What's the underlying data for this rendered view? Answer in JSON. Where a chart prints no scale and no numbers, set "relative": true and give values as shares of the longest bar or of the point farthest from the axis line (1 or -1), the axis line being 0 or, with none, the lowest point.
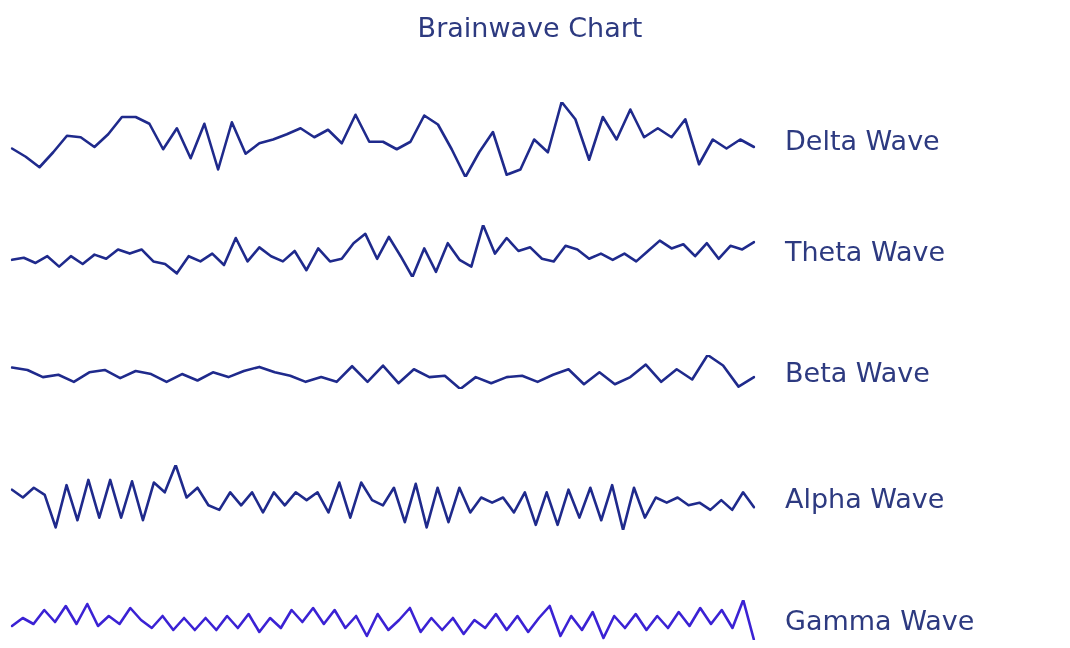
{
  "chart_data": [
    {
      "type": "line",
      "title": "Brainwave Chart",
      "relative": true,
      "marker": "none",
      "categories": [
        null,
        null,
        null,
        null,
        null,
        null,
        null,
        null,
        null,
        null,
        null,
        null,
        null,
        null,
        null,
        null,
        null,
        null,
        null,
        null,
        null,
        null,
        null,
        null,
        null,
        null,
        null,
        null,
        null,
        null,
        null,
        null,
        null,
        null,
        null,
        null,
        null,
        null,
        null,
        null,
        null,
        null,
        null,
        null,
        null,
        null,
        null,
        null,
        null,
        null,
        null,
        null,
        null,
        null,
        null
      ],
      "series": [
        {
          "name": "Delta Wave",
          "color": "#1f2a8c",
          "values": [
            0.38,
            0.27,
            0.13,
            0.33,
            0.55,
            0.53,
            0.4,
            0.57,
            0.8,
            0.8,
            0.71,
            0.37,
            0.65,
            0.25,
            0.71,
            0.1,
            0.73,
            0.31,
            0.45,
            0.5,
            0.57,
            0.65,
            0.53,
            0.63,
            0.45,
            0.83,
            0.47,
            0.47,
            0.37,
            0.47,
            0.82,
            0.7,
            0.37,
            0,
            0.33,
            0.6,
            0.03,
            0.1,
            0.5,
            0.33,
            1,
            0.77,
            0.23,
            0.8,
            0.5,
            0.9,
            0.53,
            0.65,
            0.53,
            0.77,
            0.17,
            0.5,
            0.38,
            0.5,
            0.4
          ]
        }
      ]
    },
    {
      "type": "line",
      "relative": true,
      "marker": "none",
      "categories": [
        null,
        null,
        null,
        null,
        null,
        null,
        null,
        null,
        null,
        null,
        null,
        null,
        null,
        null,
        null,
        null,
        null,
        null,
        null,
        null,
        null,
        null,
        null,
        null,
        null,
        null,
        null,
        null,
        null,
        null,
        null,
        null,
        null,
        null,
        null,
        null,
        null,
        null,
        null,
        null,
        null,
        null,
        null,
        null,
        null,
        null,
        null,
        null,
        null,
        null,
        null,
        null,
        null,
        null,
        null,
        null,
        null,
        null,
        null,
        null,
        null,
        null,
        null,
        null
      ],
      "series": [
        {
          "name": "Theta Wave",
          "color": "#1f2a8c",
          "values": [
            0.33,
            0.37,
            0.27,
            0.4,
            0.2,
            0.4,
            0.25,
            0.43,
            0.35,
            0.53,
            0.45,
            0.53,
            0.3,
            0.25,
            0.07,
            0.4,
            0.3,
            0.45,
            0.23,
            0.75,
            0.3,
            0.57,
            0.4,
            0.3,
            0.5,
            0.13,
            0.55,
            0.3,
            0.35,
            0.65,
            0.83,
            0.35,
            0.77,
            0.4,
            0,
            0.55,
            0.1,
            0.65,
            0.33,
            0.2,
            1,
            0.45,
            0.75,
            0.5,
            0.57,
            0.35,
            0.3,
            0.6,
            0.53,
            0.35,
            0.45,
            0.33,
            0.45,
            0.3,
            0.5,
            0.7,
            0.55,
            0.63,
            0.4,
            0.65,
            0.35,
            0.6,
            0.53,
            0.67
          ]
        }
      ]
    },
    {
      "type": "line",
      "relative": true,
      "marker": "none",
      "categories": [
        null,
        null,
        null,
        null,
        null,
        null,
        null,
        null,
        null,
        null,
        null,
        null,
        null,
        null,
        null,
        null,
        null,
        null,
        null,
        null,
        null,
        null,
        null,
        null,
        null,
        null,
        null,
        null,
        null,
        null,
        null,
        null,
        null,
        null,
        null,
        null,
        null,
        null,
        null,
        null,
        null,
        null,
        null,
        null,
        null,
        null,
        null,
        null,
        null
      ],
      "series": [
        {
          "name": "Beta Wave",
          "color": "#1f2a8c",
          "values": [
            0.63,
            0.56,
            0.35,
            0.42,
            0.21,
            0.49,
            0.56,
            0.32,
            0.53,
            0.44,
            0.21,
            0.44,
            0.25,
            0.49,
            0.35,
            0.53,
            0.65,
            0.49,
            0.39,
            0.21,
            0.35,
            0.21,
            0.67,
            0.21,
            0.69,
            0.17,
            0.58,
            0.35,
            0.39,
            0,
            0.35,
            0.17,
            0.35,
            0.39,
            0.21,
            0.42,
            0.58,
            0.14,
            0.49,
            0.14,
            0.35,
            0.72,
            0.21,
            0.58,
            0.28,
            1,
            0.69,
            0.07,
            0.35
          ]
        }
      ]
    },
    {
      "type": "line",
      "relative": true,
      "marker": "none",
      "categories": [
        null,
        null,
        null,
        null,
        null,
        null,
        null,
        null,
        null,
        null,
        null,
        null,
        null,
        null,
        null,
        null,
        null,
        null,
        null,
        null,
        null,
        null,
        null,
        null,
        null,
        null,
        null,
        null,
        null,
        null,
        null,
        null,
        null,
        null,
        null,
        null,
        null,
        null,
        null,
        null,
        null,
        null,
        null,
        null,
        null,
        null,
        null,
        null,
        null,
        null,
        null,
        null,
        null,
        null,
        null,
        null,
        null,
        null,
        null,
        null,
        null,
        null,
        null,
        null,
        null,
        null,
        null,
        null,
        null
      ],
      "series": [
        {
          "name": "Alpha Wave",
          "color": "#1f2a8c",
          "values": [
            0.62,
            0.5,
            0.65,
            0.54,
            0.04,
            0.69,
            0.15,
            0.77,
            0.19,
            0.77,
            0.19,
            0.75,
            0.15,
            0.73,
            0.58,
            1,
            0.5,
            0.65,
            0.38,
            0.31,
            0.58,
            0.38,
            0.58,
            0.27,
            0.58,
            0.38,
            0.58,
            0.46,
            0.58,
            0.27,
            0.73,
            0.19,
            0.73,
            0.46,
            0.38,
            0.65,
            0.12,
            0.71,
            0.04,
            0.65,
            0.12,
            0.65,
            0.27,
            0.5,
            0.42,
            0.5,
            0.27,
            0.58,
            0.08,
            0.58,
            0.08,
            0.62,
            0.19,
            0.65,
            0.15,
            0.69,
            0,
            0.65,
            0.19,
            0.5,
            0.42,
            0.5,
            0.38,
            0.42,
            0.31,
            0.46,
            0.31,
            0.58,
            0.35
          ]
        }
      ]
    },
    {
      "type": "line",
      "relative": true,
      "marker": "none",
      "categories": [
        null,
        null,
        null,
        null,
        null,
        null,
        null,
        null,
        null,
        null,
        null,
        null,
        null,
        null,
        null,
        null,
        null,
        null,
        null,
        null,
        null,
        null,
        null,
        null,
        null,
        null,
        null,
        null,
        null,
        null,
        null,
        null,
        null,
        null,
        null,
        null,
        null,
        null,
        null,
        null,
        null,
        null,
        null,
        null,
        null,
        null,
        null,
        null,
        null,
        null,
        null,
        null,
        null,
        null,
        null,
        null,
        null,
        null,
        null,
        null,
        null,
        null,
        null,
        null,
        null,
        null,
        null,
        null,
        null,
        null
      ],
      "series": [
        {
          "name": "Gamma Wave",
          "color": "#3b22d4",
          "values": [
            0.35,
            0.55,
            0.4,
            0.75,
            0.45,
            0.85,
            0.4,
            0.9,
            0.35,
            0.6,
            0.4,
            0.8,
            0.5,
            0.3,
            0.6,
            0.25,
            0.55,
            0.25,
            0.55,
            0.25,
            0.6,
            0.3,
            0.65,
            0.2,
            0.55,
            0.3,
            0.75,
            0.45,
            0.8,
            0.4,
            0.75,
            0.3,
            0.6,
            0.1,
            0.65,
            0.25,
            0.5,
            0.8,
            0.2,
            0.55,
            0.25,
            0.55,
            0.15,
            0.5,
            0.3,
            0.65,
            0.25,
            0.6,
            0.2,
            0.55,
            0.85,
            0.1,
            0.6,
            0.25,
            0.7,
            0.05,
            0.6,
            0.3,
            0.65,
            0.25,
            0.6,
            0.3,
            0.7,
            0.35,
            0.8,
            0.4,
            0.75,
            0.3,
            1,
            0
          ]
        }
      ]
    }
  ]
}
